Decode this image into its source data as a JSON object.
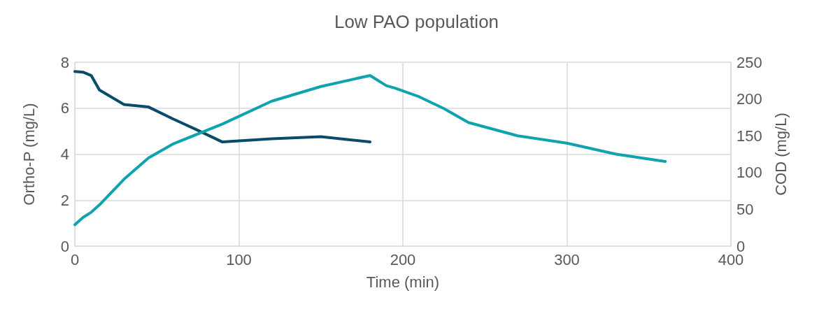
{
  "chart_data": {
    "type": "line",
    "title": "Low PAO population",
    "xlabel": "Time (min)",
    "ylabel": "Ortho-P (mg/L)",
    "y2label": "COD (mg/L)",
    "xlim": [
      0,
      400
    ],
    "xticks": [
      0,
      100,
      200,
      300,
      400
    ],
    "ylim": [
      0,
      8
    ],
    "yticks": [
      0,
      2,
      4,
      6,
      8
    ],
    "y2lim": [
      0,
      250
    ],
    "y2ticks": [
      0,
      50,
      100,
      150,
      200,
      250
    ],
    "grid": true,
    "marker": "none",
    "line_style": "solid",
    "series": [
      {
        "color": "#0a4a6b",
        "x": [
          0,
          5,
          10,
          15,
          30,
          45,
          60,
          75,
          90,
          120,
          150,
          180
        ],
        "values": [
          7.6,
          7.57,
          7.42,
          6.79,
          6.16,
          6.05,
          5.53,
          5.04,
          4.53,
          4.67,
          4.76,
          4.53
        ]
      },
      {
        "color": "#0fa3ad",
        "axis": "y2",
        "x": [
          0,
          5,
          10,
          15,
          30,
          45,
          60,
          90,
          120,
          150,
          180,
          190,
          195,
          210,
          225,
          240,
          270,
          300,
          330,
          360
        ],
        "values": [
          29,
          39,
          46,
          56,
          91,
          120,
          139,
          166,
          197,
          217,
          232,
          218,
          215,
          203,
          187,
          168,
          150,
          140,
          125,
          115
        ]
      }
    ]
  }
}
